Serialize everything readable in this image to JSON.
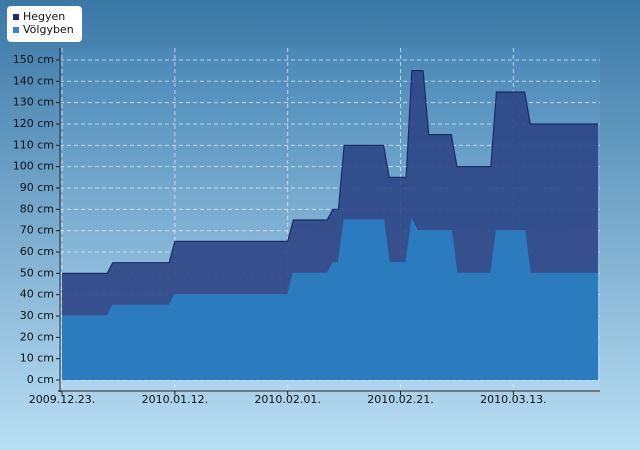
{
  "chart_data": {
    "type": "area",
    "x": [
      "2009-12-23",
      "2009-12-31",
      "2010-01-01",
      "2010-01-11",
      "2010-01-12",
      "2010-02-01",
      "2010-02-02",
      "2010-02-08",
      "2010-02-09",
      "2010-02-10",
      "2010-02-11",
      "2010-02-18",
      "2010-02-19",
      "2010-02-22",
      "2010-02-23",
      "2010-02-24",
      "2010-02-25",
      "2010-02-26",
      "2010-03-02",
      "2010-03-03",
      "2010-03-09",
      "2010-03-10",
      "2010-03-15",
      "2010-03-16",
      "2010-03-28"
    ],
    "series": [
      {
        "name": "Hegyen",
        "color": "#2c4585",
        "values": [
          50,
          50,
          55,
          55,
          65,
          65,
          75,
          75,
          80,
          80,
          110,
          110,
          95,
          95,
          145,
          145,
          145,
          115,
          115,
          100,
          100,
          135,
          135,
          120,
          120
        ]
      },
      {
        "name": "Völgyben",
        "color": "#2b7bbf",
        "values": [
          30,
          30,
          35,
          35,
          40,
          40,
          50,
          50,
          55,
          55,
          75,
          75,
          55,
          55,
          75,
          70,
          70,
          70,
          70,
          50,
          50,
          70,
          70,
          50,
          50
        ]
      }
    ],
    "xlim": [
      "2009-12-23",
      "2010-03-28"
    ],
    "xticks": [
      {
        "value": "2009-12-23",
        "label": "2009.12.23."
      },
      {
        "value": "2010-01-12",
        "label": "2010.01.12."
      },
      {
        "value": "2010-02-01",
        "label": "2010.02.01."
      },
      {
        "value": "2010-02-21",
        "label": "2010.02.21."
      },
      {
        "value": "2010-03-13",
        "label": "2010.03.13."
      }
    ],
    "ylim": [
      -5,
      155
    ],
    "yticks": [
      {
        "value": 0,
        "label": "0 cm"
      },
      {
        "value": 10,
        "label": "10 cm"
      },
      {
        "value": 20,
        "label": "20 cm"
      },
      {
        "value": 30,
        "label": "30 cm"
      },
      {
        "value": 40,
        "label": "40 cm"
      },
      {
        "value": 50,
        "label": "50 cm"
      },
      {
        "value": 60,
        "label": "60 cm"
      },
      {
        "value": 70,
        "label": "70 cm"
      },
      {
        "value": 80,
        "label": "80 cm"
      },
      {
        "value": 90,
        "label": "90 cm"
      },
      {
        "value": 100,
        "label": "100 cm"
      },
      {
        "value": 110,
        "label": "110 cm"
      },
      {
        "value": 120,
        "label": "120 cm"
      },
      {
        "value": 130,
        "label": "130 cm"
      },
      {
        "value": 140,
        "label": "140 cm"
      },
      {
        "value": 150,
        "label": "150 cm"
      }
    ],
    "grid": true
  }
}
